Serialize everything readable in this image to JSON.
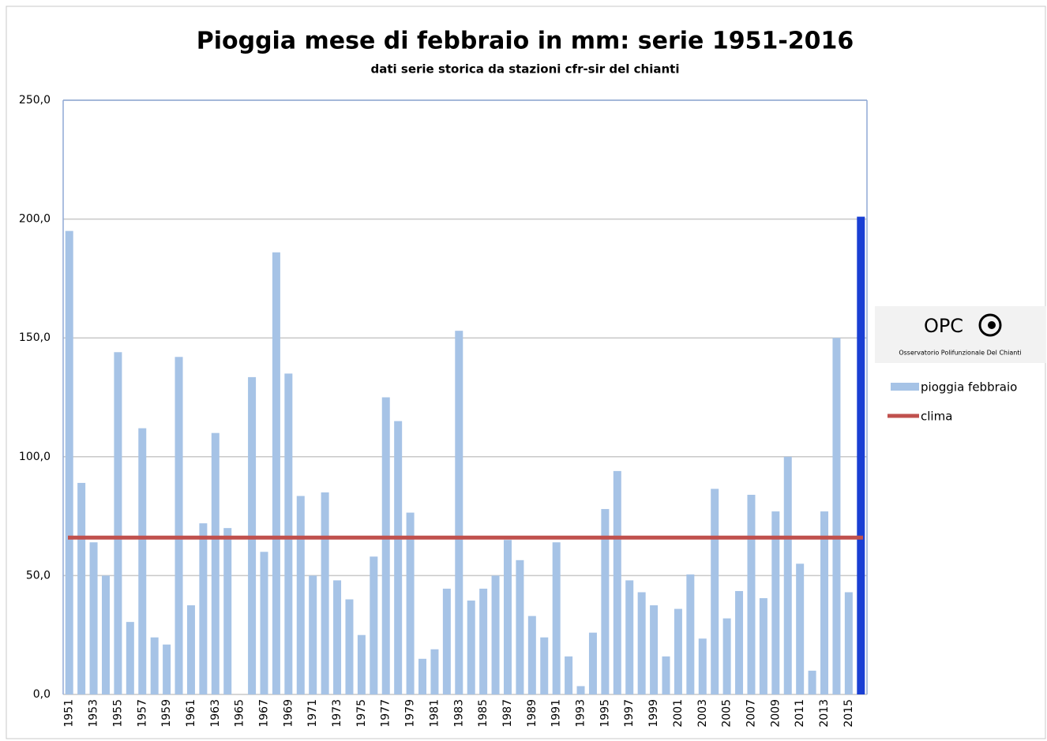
{
  "chart_data": {
    "type": "bar",
    "title": "Pioggia mese di febbraio in mm: serie 1951-2016",
    "subtitle": "dati serie storica da stazioni cfr-sir del chianti",
    "logo": {
      "title": "OPC",
      "subtitle": "Osservatorio Polifunzionale Del Chianti"
    },
    "categories": [
      "1951",
      null,
      "1953",
      null,
      "1955",
      null,
      "1957",
      null,
      "1959",
      null,
      "1961",
      null,
      "1963",
      null,
      "1965",
      null,
      "1967",
      null,
      "1969",
      null,
      "1971",
      null,
      "1973",
      null,
      "1975",
      null,
      "1977",
      null,
      "1979",
      null,
      "1981",
      null,
      "1983",
      null,
      "1985",
      null,
      "1987",
      null,
      "1989",
      null,
      "1991",
      null,
      "1993",
      null,
      "1995",
      null,
      "1997",
      null,
      "1999",
      null,
      "2001",
      null,
      "2003",
      null,
      "2005",
      null,
      "2007",
      null,
      "2009",
      null,
      "2011",
      null,
      "2013",
      null,
      "2015",
      null
    ],
    "series": [
      {
        "name": "pioggia febbraio",
        "color": "#a6c3e6",
        "point_colors": [
          "#a6c3e6",
          "#a6c3e6",
          "#a6c3e6",
          "#a6c3e6",
          "#a6c3e6",
          "#a6c3e6",
          "#a6c3e6",
          "#a6c3e6",
          "#a6c3e6",
          "#a6c3e6",
          "#a6c3e6",
          "#a6c3e6",
          "#a6c3e6",
          "#a6c3e6",
          "#a6c3e6",
          "#a6c3e6",
          "#a6c3e6",
          "#a6c3e6",
          "#a6c3e6",
          "#a6c3e6",
          "#a6c3e6",
          "#a6c3e6",
          "#a6c3e6",
          "#a6c3e6",
          "#a6c3e6",
          "#a6c3e6",
          "#a6c3e6",
          "#a6c3e6",
          "#a6c3e6",
          "#a6c3e6",
          "#a6c3e6",
          "#a6c3e6",
          "#a6c3e6",
          "#a6c3e6",
          "#a6c3e6",
          "#a6c3e6",
          "#a6c3e6",
          "#a6c3e6",
          "#a6c3e6",
          "#a6c3e6",
          "#a6c3e6",
          "#a6c3e6",
          "#a6c3e6",
          "#a6c3e6",
          "#a6c3e6",
          "#a6c3e6",
          "#a6c3e6",
          "#a6c3e6",
          "#a6c3e6",
          "#a6c3e6",
          "#a6c3e6",
          "#a6c3e6",
          "#a6c3e6",
          "#a6c3e6",
          "#a6c3e6",
          "#a6c3e6",
          "#a6c3e6",
          "#a6c3e6",
          "#a6c3e6",
          "#a6c3e6",
          "#a6c3e6",
          "#a6c3e6",
          "#a6c3e6",
          "#a6c3e6",
          "#a6c3e6",
          "#1a3fd4"
        ],
        "values": [
          195,
          89,
          64,
          50,
          144,
          30.5,
          112,
          24,
          21,
          142,
          37.5,
          72,
          110,
          70,
          0,
          133.5,
          60,
          186,
          135,
          83.5,
          50,
          85,
          48,
          40,
          25,
          58,
          125,
          115,
          76.5,
          15,
          19,
          44.5,
          153,
          39.5,
          44.5,
          50,
          65,
          56.5,
          33,
          24,
          64,
          16,
          3.5,
          26,
          78,
          94,
          48,
          43,
          37.5,
          16,
          36,
          50.5,
          23.5,
          86.5,
          32,
          43.5,
          84,
          40.5,
          77,
          100,
          55,
          10,
          77,
          150,
          43,
          201
        ]
      },
      {
        "name": "clima",
        "color": "#c0504d",
        "type": "hline",
        "value": 66
      }
    ],
    "ylim": [
      0,
      250
    ],
    "yticks": [
      {
        "value": 0,
        "label": "0,0"
      },
      {
        "value": 50,
        "label": "50,0"
      },
      {
        "value": 100,
        "label": "100,0"
      },
      {
        "value": 150,
        "label": "150,0"
      },
      {
        "value": 200,
        "label": "200,0"
      },
      {
        "value": 250,
        "label": "250,0"
      }
    ],
    "grid": true,
    "legend": "right"
  }
}
